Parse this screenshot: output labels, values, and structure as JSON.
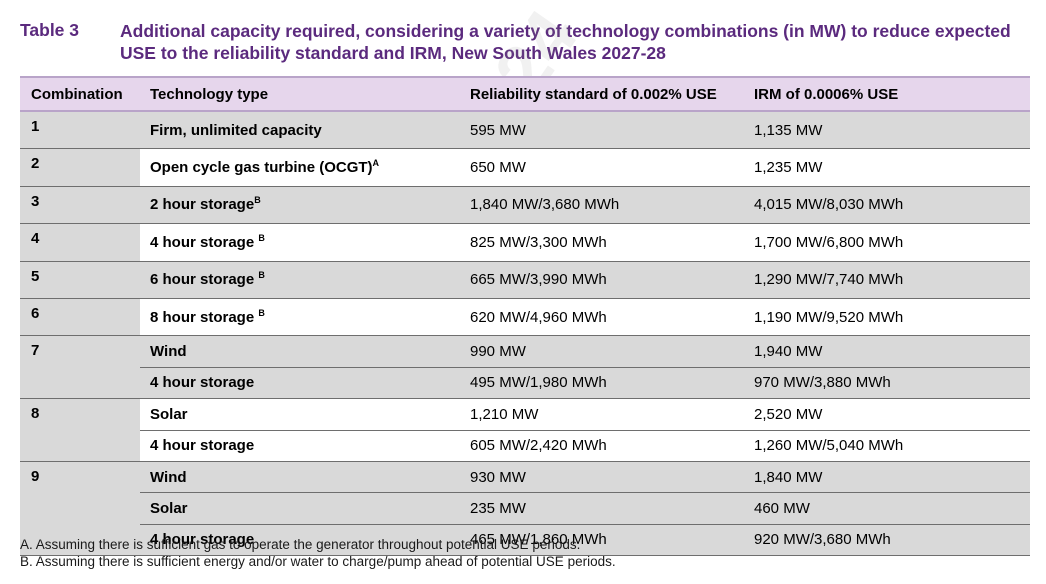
{
  "caption": {
    "label": "Table 3",
    "title": "Additional capacity required, considering a variety of technology combinations (in MW) to reduce expected USE to the reliability standard and IRM, New South Wales 2027-28"
  },
  "table": {
    "headers": [
      "Combination",
      "Technology type",
      "Reliability standard of 0.002% USE",
      "IRM of 0.0006% USE"
    ],
    "rows": [
      {
        "combination": "1",
        "technology": "Firm, unlimited capacity",
        "note": "",
        "reliability": "595 MW",
        "irm": "1,135 MW"
      },
      {
        "combination": "2",
        "technology": "Open cycle gas turbine (OCGT)",
        "note": "A",
        "reliability": "650 MW",
        "irm": "1,235 MW"
      },
      {
        "combination": "3",
        "technology": "2 hour storage",
        "note": "B",
        "reliability": "1,840 MW/3,680 MWh",
        "irm": "4,015 MW/8,030 MWh"
      },
      {
        "combination": "4",
        "technology": "4 hour storage ",
        "note": "B",
        "reliability": "825 MW/3,300 MWh",
        "irm": "1,700 MW/6,800 MWh"
      },
      {
        "combination": "5",
        "technology": "6 hour storage ",
        "note": "B",
        "reliability": "665 MW/3,990 MWh",
        "irm": "1,290 MW/7,740 MWh"
      },
      {
        "combination": "6",
        "technology": "8 hour storage ",
        "note": "B",
        "reliability": "620 MW/4,960 MWh",
        "irm": "1,190 MW/9,520 MWh"
      },
      {
        "combination": "7",
        "technology": "Wind",
        "note": "",
        "reliability": "990 MW",
        "irm": "1,940 MW"
      },
      {
        "combination": "",
        "technology": "4 hour storage",
        "note": "",
        "reliability": "495 MW/1,980 MWh",
        "irm": "970 MW/3,880 MWh"
      },
      {
        "combination": "8",
        "technology": "Solar",
        "note": "",
        "reliability": "1,210 MW",
        "irm": "2,520 MW"
      },
      {
        "combination": "",
        "technology": "4 hour storage",
        "note": "",
        "reliability": "605 MW/2,420 MWh",
        "irm": "1,260 MW/5,040 MWh"
      },
      {
        "combination": "9",
        "technology": "Wind",
        "note": "",
        "reliability": "930 MW",
        "irm": "1,840 MW"
      },
      {
        "combination": "",
        "technology": "Solar",
        "note": "",
        "reliability": "235 MW",
        "irm": "460 MW"
      },
      {
        "combination": "",
        "technology": "4 hour storage",
        "note": "",
        "reliability": "465 MW/1,860 MWh",
        "irm": "920 MW/3,680 MWh"
      }
    ]
  },
  "footnotes": [
    "A. Assuming there is sufficient gas to operate the generator throughout potential USE periods.",
    "B. Assuming there is sufficient energy and/or water to charge/pump ahead of potential USE periods."
  ],
  "watermark": "2024"
}
